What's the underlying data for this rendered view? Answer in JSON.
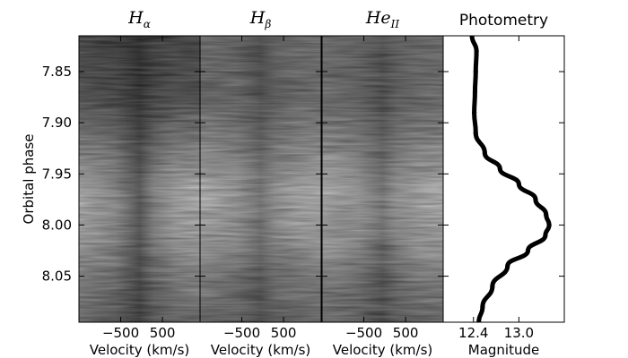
{
  "chart_data": {
    "type": "trailed_spectra_with_photometry",
    "ylabel": "Orbital phase",
    "ylim": [
      8.095,
      7.815
    ],
    "yticks": [
      {
        "value": 7.85,
        "label": "7.85"
      },
      {
        "value": 7.9,
        "label": "7.90"
      },
      {
        "value": 7.95,
        "label": "7.95"
      },
      {
        "value": 8.0,
        "label": "8.00"
      },
      {
        "value": 8.05,
        "label": "8.05"
      }
    ],
    "panels": [
      {
        "id": "halpha",
        "title_main": "H",
        "title_sub": "α",
        "xlabel": "Velocity (km/s)",
        "xlim": [
          -1500,
          1400
        ],
        "xticks": [
          {
            "value": -500,
            "label": "−500"
          },
          {
            "value": 500,
            "label": "500"
          }
        ]
      },
      {
        "id": "hbeta",
        "title_main": "H",
        "title_sub": "β",
        "xlabel": "Velocity (km/s)",
        "xlim": [
          -1500,
          1400
        ],
        "xticks": [
          {
            "value": -500,
            "label": "−500"
          },
          {
            "value": 500,
            "label": "500"
          }
        ]
      },
      {
        "id": "heii",
        "title_main": "He",
        "title_sub": "II",
        "xlabel": "Velocity (km/s)",
        "xlim": [
          -1500,
          1400
        ],
        "xticks": [
          {
            "value": -500,
            "label": "−500"
          },
          {
            "value": 500,
            "label": "500"
          }
        ]
      }
    ],
    "photometry": {
      "title": "Photometry",
      "xlabel": "Magnitude",
      "xlim": [
        12.0,
        13.6
      ],
      "xticks": [
        {
          "value": 12.4,
          "label": "12.4"
        },
        {
          "value": 13.0,
          "label": "13.0"
        }
      ],
      "phase": [
        7.815,
        7.83,
        7.85,
        7.87,
        7.89,
        7.91,
        7.93,
        7.945,
        7.96,
        7.975,
        7.99,
        8.0,
        8.01,
        8.025,
        8.04,
        8.06,
        8.08,
        8.095
      ],
      "magnitude": [
        12.38,
        12.44,
        12.43,
        12.42,
        12.41,
        12.43,
        12.55,
        12.75,
        13.0,
        13.22,
        13.36,
        13.4,
        13.35,
        13.12,
        12.85,
        12.65,
        12.52,
        12.47
      ]
    }
  }
}
